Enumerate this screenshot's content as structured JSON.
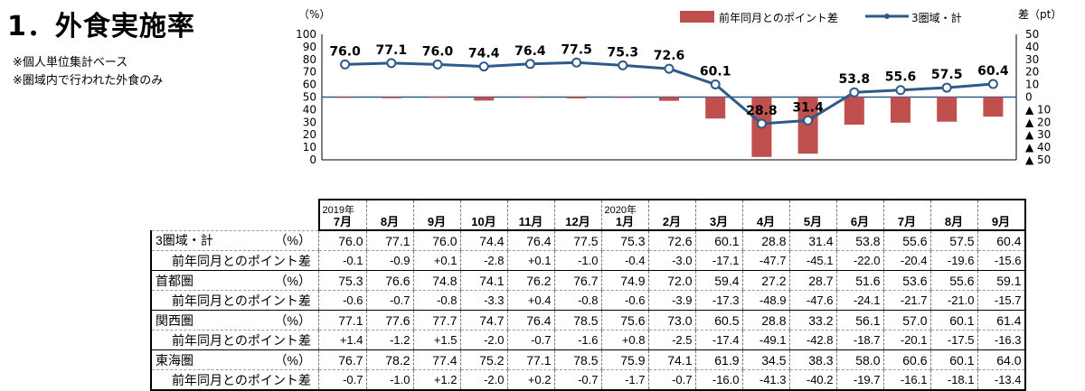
{
  "title": "1．外食実施率",
  "notes": [
    "※個人単位集計ベース",
    "※圏域内で行われた外食のみ"
  ],
  "chart_data": {
    "type": "line+bar",
    "left_axis": {
      "unit": "（%）",
      "ylim": [
        0,
        100
      ],
      "ticks": [
        0,
        10,
        20,
        30,
        40,
        50,
        60,
        70,
        80,
        90,
        100
      ]
    },
    "right_axis": {
      "unit": "差（pt）",
      "ylim": [
        -50,
        50
      ],
      "ticks": [
        "50",
        "40",
        "30",
        "20",
        "10",
        "0",
        "▲ 10",
        "▲ 20",
        "▲ 30",
        "▲ 40",
        "▲ 50"
      ]
    },
    "legend": [
      {
        "name": "前年同月とのポイント差",
        "color": "#c0504d"
      },
      {
        "name": "3圏域・計",
        "color": "#2e5a8a"
      }
    ],
    "year_labels": [
      {
        "index": 0,
        "label": "2019年"
      },
      {
        "index": 6,
        "label": "2020年"
      }
    ],
    "categories": [
      "7月",
      "8月",
      "9月",
      "10月",
      "11月",
      "12月",
      "1月",
      "2月",
      "3月",
      "4月",
      "5月",
      "6月",
      "7月",
      "8月",
      "9月"
    ],
    "series": [
      {
        "name": "3圏域・計",
        "type": "line",
        "axis": "left",
        "values": [
          76.0,
          77.1,
          76.0,
          74.4,
          76.4,
          77.5,
          75.3,
          72.6,
          60.1,
          28.8,
          31.4,
          53.8,
          55.6,
          57.5,
          60.4
        ]
      },
      {
        "name": "前年同月とのポイント差",
        "type": "bar",
        "axis": "right",
        "values": [
          -0.1,
          -0.9,
          0.1,
          -2.8,
          0.1,
          -1.0,
          -0.4,
          -3.0,
          -17.1,
          -47.7,
          -45.1,
          -22.0,
          -20.4,
          -19.6,
          -15.6
        ]
      }
    ]
  },
  "table": {
    "rows": [
      {
        "label": "3圏域・計",
        "unit": "（%）",
        "kind": "main",
        "cells": [
          "76.0",
          "77.1",
          "76.0",
          "74.4",
          "76.4",
          "77.5",
          "75.3",
          "72.6",
          "60.1",
          "28.8",
          "31.4",
          "53.8",
          "55.6",
          "57.5",
          "60.4"
        ]
      },
      {
        "label": "前年同月とのポイント差",
        "unit": "",
        "kind": "sub",
        "cells": [
          "-0.1",
          "-0.9",
          "+0.1",
          "-2.8",
          "+0.1",
          "-1.0",
          "-0.4",
          "-3.0",
          "-17.1",
          "-47.7",
          "-45.1",
          "-22.0",
          "-20.4",
          "-19.6",
          "-15.6"
        ]
      },
      {
        "label": "首都圏",
        "unit": "（%）",
        "kind": "main",
        "cells": [
          "75.3",
          "76.6",
          "74.8",
          "74.1",
          "76.2",
          "76.7",
          "74.9",
          "72.0",
          "59.4",
          "27.2",
          "28.7",
          "51.6",
          "53.6",
          "55.6",
          "59.1"
        ]
      },
      {
        "label": "前年同月とのポイント差",
        "unit": "",
        "kind": "sub",
        "cells": [
          "-0.6",
          "-0.7",
          "-0.8",
          "-3.3",
          "+0.4",
          "-0.8",
          "-0.6",
          "-3.9",
          "-17.3",
          "-48.9",
          "-47.6",
          "-24.1",
          "-21.7",
          "-21.0",
          "-15.7"
        ]
      },
      {
        "label": "関西圏",
        "unit": "（%）",
        "kind": "main",
        "cells": [
          "77.1",
          "77.6",
          "77.7",
          "74.7",
          "76.4",
          "78.5",
          "75.6",
          "73.0",
          "60.5",
          "28.8",
          "33.2",
          "56.1",
          "57.0",
          "60.1",
          "61.4"
        ]
      },
      {
        "label": "前年同月とのポイント差",
        "unit": "",
        "kind": "sub",
        "cells": [
          "+1.4",
          "-1.2",
          "+1.5",
          "-2.0",
          "-0.7",
          "-1.6",
          "+0.8",
          "-2.5",
          "-17.4",
          "-49.1",
          "-42.8",
          "-18.7",
          "-20.1",
          "-17.5",
          "-16.3"
        ]
      },
      {
        "label": "東海圏",
        "unit": "（%）",
        "kind": "main",
        "cells": [
          "76.7",
          "78.2",
          "77.4",
          "75.2",
          "77.1",
          "78.5",
          "75.9",
          "74.1",
          "61.9",
          "34.5",
          "38.3",
          "58.0",
          "60.6",
          "60.1",
          "64.0"
        ]
      },
      {
        "label": "前年同月とのポイント差",
        "unit": "",
        "kind": "sub",
        "cells": [
          "-0.7",
          "-1.0",
          "+1.2",
          "-2.0",
          "+0.2",
          "-0.7",
          "-1.7",
          "-0.7",
          "-16.0",
          "-41.3",
          "-40.2",
          "-19.7",
          "-16.1",
          "-18.1",
          "-13.4"
        ]
      }
    ]
  }
}
